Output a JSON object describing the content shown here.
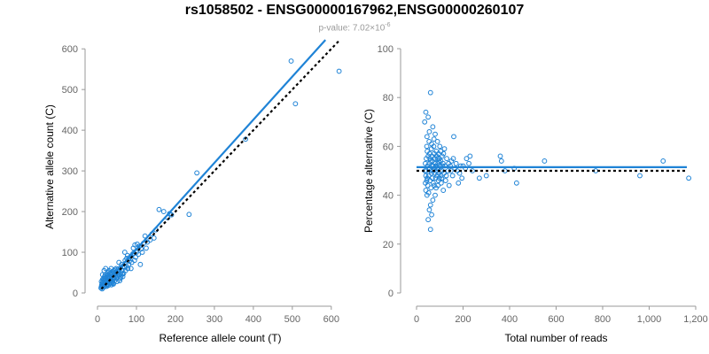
{
  "title": "rs1058502 - ENSG00000167962,ENSG00000260107",
  "subtitle_prefix": "p-value: 7.02×10",
  "subtitle_exponent": "-6",
  "colors": {
    "points": "#1f83d6",
    "fit": "#1f83d6",
    "expected": "#000000",
    "axis": "#999999",
    "ticks": "#666666"
  },
  "chart_data": [
    {
      "type": "scatter",
      "name": "allele-counts",
      "xlabel": "Reference allele count (T)",
      "ylabel": "Alternative allele count (C)",
      "xlim": [
        0,
        630
      ],
      "ylim": [
        0,
        620
      ],
      "xticks": [
        0,
        100,
        200,
        300,
        400,
        500,
        600
      ],
      "xtick_labels": [
        "0",
        "100",
        "200",
        "300",
        "400",
        "500",
        "600"
      ],
      "yticks": [
        0,
        100,
        200,
        300,
        400,
        500,
        600
      ],
      "ytick_labels": [
        "0",
        "100",
        "200",
        "300",
        "400",
        "500",
        "600"
      ],
      "fit_line": [
        [
          10,
          12
        ],
        [
          585,
          622
        ]
      ],
      "expected_line": [
        [
          10,
          10
        ],
        [
          620,
          620
        ]
      ],
      "points": [
        [
          620,
          545
        ],
        [
          497,
          570
        ],
        [
          508,
          465
        ],
        [
          380,
          378
        ],
        [
          255,
          295
        ],
        [
          235,
          193
        ],
        [
          158,
          205
        ],
        [
          170,
          200
        ],
        [
          185,
          195
        ],
        [
          180,
          185
        ],
        [
          190,
          192
        ],
        [
          135,
          130
        ],
        [
          150,
          155
        ],
        [
          125,
          110
        ],
        [
          118,
          122
        ],
        [
          102,
          120
        ],
        [
          96,
          118
        ],
        [
          110,
          70
        ],
        [
          90,
          95
        ],
        [
          100,
          100
        ],
        [
          95,
          80
        ],
        [
          85,
          90
        ],
        [
          80,
          70
        ],
        [
          70,
          100
        ],
        [
          75,
          85
        ],
        [
          68,
          65
        ],
        [
          62,
          70
        ],
        [
          60,
          50
        ],
        [
          55,
          75
        ],
        [
          52,
          40
        ],
        [
          48,
          60
        ],
        [
          45,
          45
        ],
        [
          42,
          55
        ],
        [
          40,
          35
        ],
        [
          38,
          48
        ],
        [
          35,
          60
        ],
        [
          33,
          30
        ],
        [
          30,
          42
        ],
        [
          28,
          35
        ],
        [
          26,
          50
        ],
        [
          24,
          28
        ],
        [
          22,
          38
        ],
        [
          20,
          25
        ],
        [
          18,
          30
        ],
        [
          16,
          20
        ],
        [
          15,
          35
        ],
        [
          14,
          18
        ],
        [
          12,
          24
        ],
        [
          11,
          15
        ],
        [
          10,
          28
        ],
        [
          9,
          12
        ],
        [
          13,
          45
        ],
        [
          17,
          55
        ],
        [
          21,
          60
        ],
        [
          25,
          22
        ],
        [
          27,
          18
        ],
        [
          32,
          25
        ],
        [
          36,
          20
        ],
        [
          44,
          30
        ],
        [
          50,
          28
        ],
        [
          58,
          35
        ],
        [
          65,
          40
        ],
        [
          72,
          55
        ],
        [
          78,
          60
        ],
        [
          88,
          75
        ],
        [
          105,
          95
        ],
        [
          112,
          108
        ],
        [
          12,
          10
        ],
        [
          14,
          26
        ],
        [
          16,
          14
        ],
        [
          18,
          40
        ],
        [
          19,
          22
        ],
        [
          21,
          32
        ],
        [
          23,
          16
        ],
        [
          24,
          44
        ],
        [
          26,
          30
        ],
        [
          29,
          20
        ],
        [
          31,
          38
        ],
        [
          34,
          45
        ],
        [
          37,
          28
        ],
        [
          39,
          52
        ],
        [
          41,
          22
        ],
        [
          43,
          38
        ],
        [
          46,
          50
        ],
        [
          49,
          36
        ],
        [
          53,
          58
        ],
        [
          56,
          44
        ],
        [
          59,
          62
        ],
        [
          63,
          55
        ],
        [
          67,
          48
        ],
        [
          71,
          80
        ],
        [
          74,
          66
        ],
        [
          77,
          92
        ],
        [
          82,
          78
        ],
        [
          86,
          60
        ],
        [
          92,
          110
        ],
        [
          98,
          88
        ],
        [
          108,
          115
        ],
        [
          115,
          100
        ],
        [
          122,
          140
        ],
        [
          28,
          52
        ],
        [
          32,
          48
        ],
        [
          36,
          40
        ],
        [
          40,
          24
        ],
        [
          20,
          45
        ],
        [
          22,
          20
        ],
        [
          15,
          26
        ],
        [
          13,
          33
        ],
        [
          11,
          20
        ],
        [
          10,
          16
        ],
        [
          19,
          36
        ],
        [
          23,
          30
        ],
        [
          30,
          55
        ],
        [
          35,
          32
        ],
        [
          38,
          26
        ],
        [
          45,
          58
        ],
        [
          52,
          52
        ],
        [
          57,
          30
        ],
        [
          64,
          46
        ],
        [
          70,
          62
        ],
        [
          81,
          85
        ],
        [
          93,
          98
        ],
        [
          128,
          125
        ],
        [
          140,
          145
        ],
        [
          145,
          135
        ],
        [
          16,
          32
        ],
        [
          17,
          23
        ],
        [
          25,
          38
        ],
        [
          27,
          42
        ],
        [
          29,
          31
        ],
        [
          33,
          40
        ],
        [
          42,
          46
        ],
        [
          47,
          42
        ],
        [
          51,
          46
        ],
        [
          55,
          55
        ],
        [
          60,
          38
        ]
      ]
    },
    {
      "type": "scatter",
      "name": "percentage-alternative",
      "xlabel": "Total number of reads",
      "ylabel": "Percentage alternative (C)",
      "xlim": [
        0,
        1200
      ],
      "ylim": [
        0,
        100
      ],
      "xticks": [
        0,
        200,
        400,
        600,
        800,
        1000,
        1200
      ],
      "xtick_labels": [
        "0",
        "200",
        "400",
        "600",
        "800",
        "1,000",
        "1,200"
      ],
      "yticks": [
        0,
        20,
        40,
        60,
        80,
        100
      ],
      "ytick_labels": [
        "0",
        "20",
        "40",
        "60",
        "80",
        "100"
      ],
      "fit_y": 51.5,
      "expected_y": 50,
      "points": [
        [
          60,
          82
        ],
        [
          40,
          74
        ],
        [
          50,
          72
        ],
        [
          80,
          65
        ],
        [
          70,
          68
        ],
        [
          55,
          66
        ],
        [
          45,
          64
        ],
        [
          90,
          62
        ],
        [
          100,
          60
        ],
        [
          120,
          59
        ],
        [
          35,
          70
        ],
        [
          65,
          61
        ],
        [
          75,
          63
        ],
        [
          85,
          58
        ],
        [
          95,
          57
        ],
        [
          110,
          56
        ],
        [
          130,
          55
        ],
        [
          150,
          54
        ],
        [
          170,
          53
        ],
        [
          190,
          52
        ],
        [
          210,
          51
        ],
        [
          230,
          56
        ],
        [
          160,
          64
        ],
        [
          180,
          45
        ],
        [
          140,
          44
        ],
        [
          125,
          46
        ],
        [
          105,
          48
        ],
        [
          115,
          42
        ],
        [
          80,
          40
        ],
        [
          70,
          38
        ],
        [
          60,
          36
        ],
        [
          55,
          34
        ],
        [
          65,
          32
        ],
        [
          50,
          30
        ],
        [
          60,
          26
        ],
        [
          45,
          40
        ],
        [
          40,
          42
        ],
        [
          38,
          45
        ],
        [
          36,
          50
        ],
        [
          42,
          55
        ],
        [
          48,
          52
        ],
        [
          52,
          48
        ],
        [
          58,
          46
        ],
        [
          62,
          50
        ],
        [
          68,
          54
        ],
        [
          72,
          52
        ],
        [
          78,
          49
        ],
        [
          82,
          47
        ],
        [
          88,
          51
        ],
        [
          92,
          53
        ],
        [
          98,
          55
        ],
        [
          102,
          50
        ],
        [
          108,
          47
        ],
        [
          112,
          52
        ],
        [
          118,
          49
        ],
        [
          135,
          50
        ],
        [
          145,
          52
        ],
        [
          155,
          48
        ],
        [
          165,
          51
        ],
        [
          175,
          50
        ],
        [
          195,
          47
        ],
        [
          215,
          55
        ],
        [
          225,
          53
        ],
        [
          240,
          50
        ],
        [
          270,
          47
        ],
        [
          300,
          48
        ],
        [
          360,
          56
        ],
        [
          365,
          54
        ],
        [
          380,
          50
        ],
        [
          420,
          51
        ],
        [
          430,
          45
        ],
        [
          550,
          54
        ],
        [
          770,
          50
        ],
        [
          960,
          48
        ],
        [
          1060,
          54
        ],
        [
          1170,
          47
        ],
        [
          44,
          60
        ],
        [
          46,
          58
        ],
        [
          54,
          62
        ],
        [
          56,
          57
        ],
        [
          64,
          59
        ],
        [
          66,
          56
        ],
        [
          74,
          60
        ],
        [
          76,
          44
        ],
        [
          84,
          43
        ],
        [
          86,
          56
        ],
        [
          94,
          46
        ],
        [
          96,
          54
        ],
        [
          104,
          58
        ],
        [
          106,
          45
        ],
        [
          114,
          53
        ],
        [
          116,
          57
        ],
        [
          46,
          47
        ],
        [
          48,
          44
        ],
        [
          52,
          41
        ],
        [
          54,
          53
        ],
        [
          58,
          55
        ],
        [
          62,
          43
        ],
        [
          64,
          49
        ],
        [
          68,
          47
        ],
        [
          72,
          45
        ],
        [
          74,
          51
        ],
        [
          78,
          55
        ],
        [
          84,
          52
        ],
        [
          88,
          48
        ],
        [
          92,
          44
        ],
        [
          96,
          49
        ],
        [
          100,
          52
        ],
        [
          40,
          48
        ],
        [
          38,
          53
        ],
        [
          42,
          50
        ],
        [
          44,
          46
        ],
        [
          50,
          56
        ],
        [
          56,
          51
        ],
        [
          60,
          54
        ],
        [
          66,
          52
        ],
        [
          70,
          50
        ],
        [
          76,
          57
        ],
        [
          80,
          53
        ],
        [
          86,
          50
        ],
        [
          90,
          55
        ],
        [
          94,
          51
        ],
        [
          98,
          47
        ],
        [
          104,
          54
        ],
        [
          110,
          50
        ],
        [
          122,
          52
        ],
        [
          128,
          48
        ],
        [
          138,
          53
        ],
        [
          148,
          50
        ],
        [
          158,
          55
        ],
        [
          185,
          49
        ],
        [
          200,
          52
        ]
      ]
    }
  ]
}
